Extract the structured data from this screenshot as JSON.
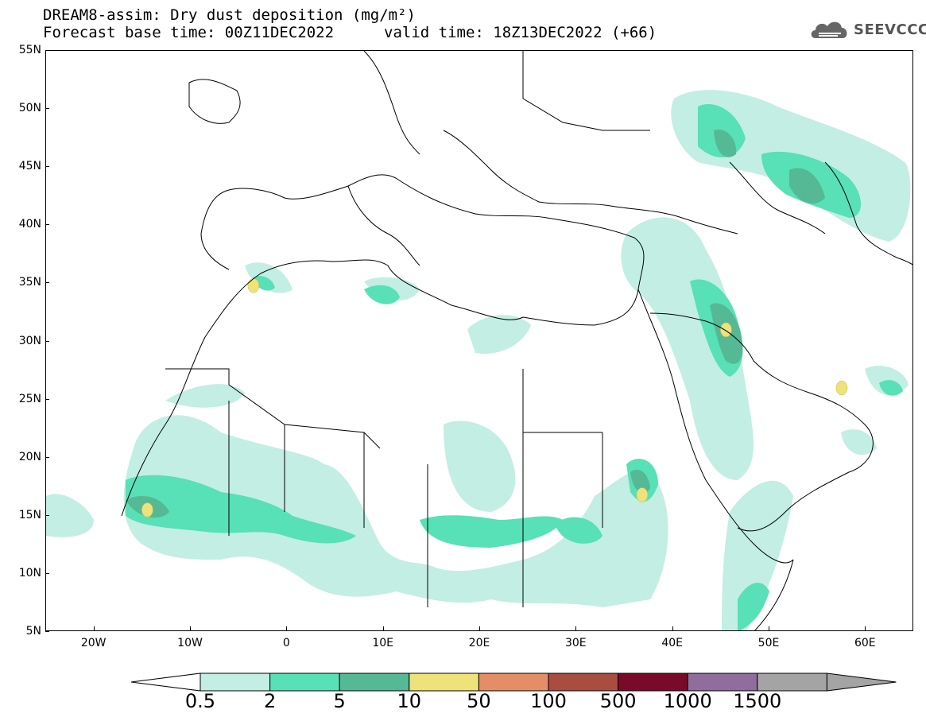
{
  "header": {
    "title": "DREAM8-assim: Dry dust deposition (mg/m²)",
    "base_time": "Forecast base time: 00Z11DEC2022",
    "valid_time": "valid time: 18Z13DEC2022 (+66)",
    "logo_text": "SEEVCCC",
    "logo_icon": "cloud-icon"
  },
  "map": {
    "projection": "lat-lon",
    "lon_range": [
      -25,
      65
    ],
    "lat_range": [
      5,
      55
    ],
    "lat_labels": [
      "55N",
      "50N",
      "45N",
      "40N",
      "35N",
      "30N",
      "25N",
      "20N",
      "15N",
      "10N",
      "5N"
    ],
    "lon_labels": [
      "20W",
      "10W",
      "0",
      "10E",
      "20E",
      "30E",
      "40E",
      "50E",
      "60E"
    ],
    "hotspots": [
      {
        "lon": 45.5,
        "lat": 31.0,
        "level": "10-50"
      },
      {
        "lon": 36.8,
        "lat": 16.8,
        "level": "10-50"
      },
      {
        "lon": -14.5,
        "lat": 15.5,
        "level": "10-50"
      },
      {
        "lon": -3.5,
        "lat": 34.8,
        "level": "10-50"
      },
      {
        "lon": 57.5,
        "lat": 26.0,
        "level": "10-50"
      }
    ]
  },
  "colorbar": {
    "labels": [
      "0.5",
      "2",
      "5",
      "10",
      "50",
      "100",
      "500",
      "1000",
      "1500"
    ],
    "colors": [
      "#c3eee3",
      "#58e0b6",
      "#55b995",
      "#ede37a",
      "#e58d66",
      "#aa4d41",
      "#7a0a2a",
      "#8f6d9c",
      "#a4a4a4"
    ],
    "below_color": "#ffffff",
    "above_color": "#a4a4a4"
  }
}
